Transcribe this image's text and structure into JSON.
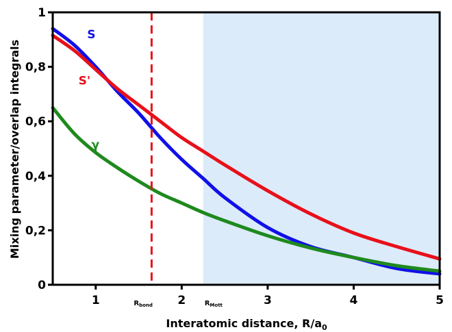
{
  "chart_data": {
    "type": "line",
    "xlabel": "Interatomic distance, R/a",
    "xlabel_sub": "0",
    "ylabel": "Mixing parameter/overlap integrals",
    "xlim": [
      0.5,
      5
    ],
    "ylim": [
      0,
      1
    ],
    "x_ticks": [
      1,
      2,
      3,
      4,
      5
    ],
    "y_ticks": [
      {
        "value": 0,
        "label": "0"
      },
      {
        "value": 0.2,
        "label": "0,2"
      },
      {
        "value": 0.4,
        "label": "0,4"
      },
      {
        "value": 0.6,
        "label": "0,6"
      },
      {
        "value": 0.8,
        "label": "0,8"
      },
      {
        "value": 1,
        "label": "1"
      }
    ],
    "grid": false,
    "series": [
      {
        "name": "S",
        "color": "#1010e8",
        "x": [
          0.5,
          0.75,
          1.0,
          1.25,
          1.5,
          1.75,
          2.0,
          2.25,
          2.5,
          3.0,
          3.5,
          4.0,
          4.5,
          5.0
        ],
        "y": [
          0.94,
          0.88,
          0.8,
          0.71,
          0.63,
          0.54,
          0.46,
          0.39,
          0.32,
          0.21,
          0.14,
          0.1,
          0.06,
          0.04
        ]
      },
      {
        "name": "S'",
        "color": "#e8101a",
        "x": [
          0.5,
          0.75,
          1.0,
          1.25,
          1.5,
          1.75,
          2.0,
          2.25,
          2.5,
          3.0,
          3.5,
          4.0,
          4.5,
          5.0
        ],
        "y": [
          0.915,
          0.86,
          0.79,
          0.72,
          0.66,
          0.6,
          0.54,
          0.49,
          0.44,
          0.345,
          0.26,
          0.19,
          0.14,
          0.095
        ]
      },
      {
        "name": "γ",
        "color": "#1e8a1e",
        "x": [
          0.5,
          0.75,
          1.0,
          1.25,
          1.5,
          1.75,
          2.0,
          2.25,
          2.5,
          3.0,
          3.5,
          4.0,
          4.5,
          5.0
        ],
        "y": [
          0.65,
          0.555,
          0.485,
          0.43,
          0.38,
          0.335,
          0.3,
          0.265,
          0.235,
          0.18,
          0.135,
          0.1,
          0.07,
          0.05
        ]
      }
    ],
    "series_label_positions": [
      {
        "name": "S",
        "x": 0.9,
        "y": 0.905
      },
      {
        "name": "S'",
        "x": 0.8,
        "y": 0.735
      },
      {
        "name": "γ",
        "x": 0.95,
        "y": 0.5
      }
    ],
    "annotations": {
      "r_bond": {
        "x": 1.65,
        "main": "R",
        "sub": "bond",
        "color": "#e8101a"
      },
      "r_mott": {
        "x": 2.25,
        "main": "R",
        "sub": "Mott",
        "region_color": "#dcebf9"
      }
    }
  }
}
